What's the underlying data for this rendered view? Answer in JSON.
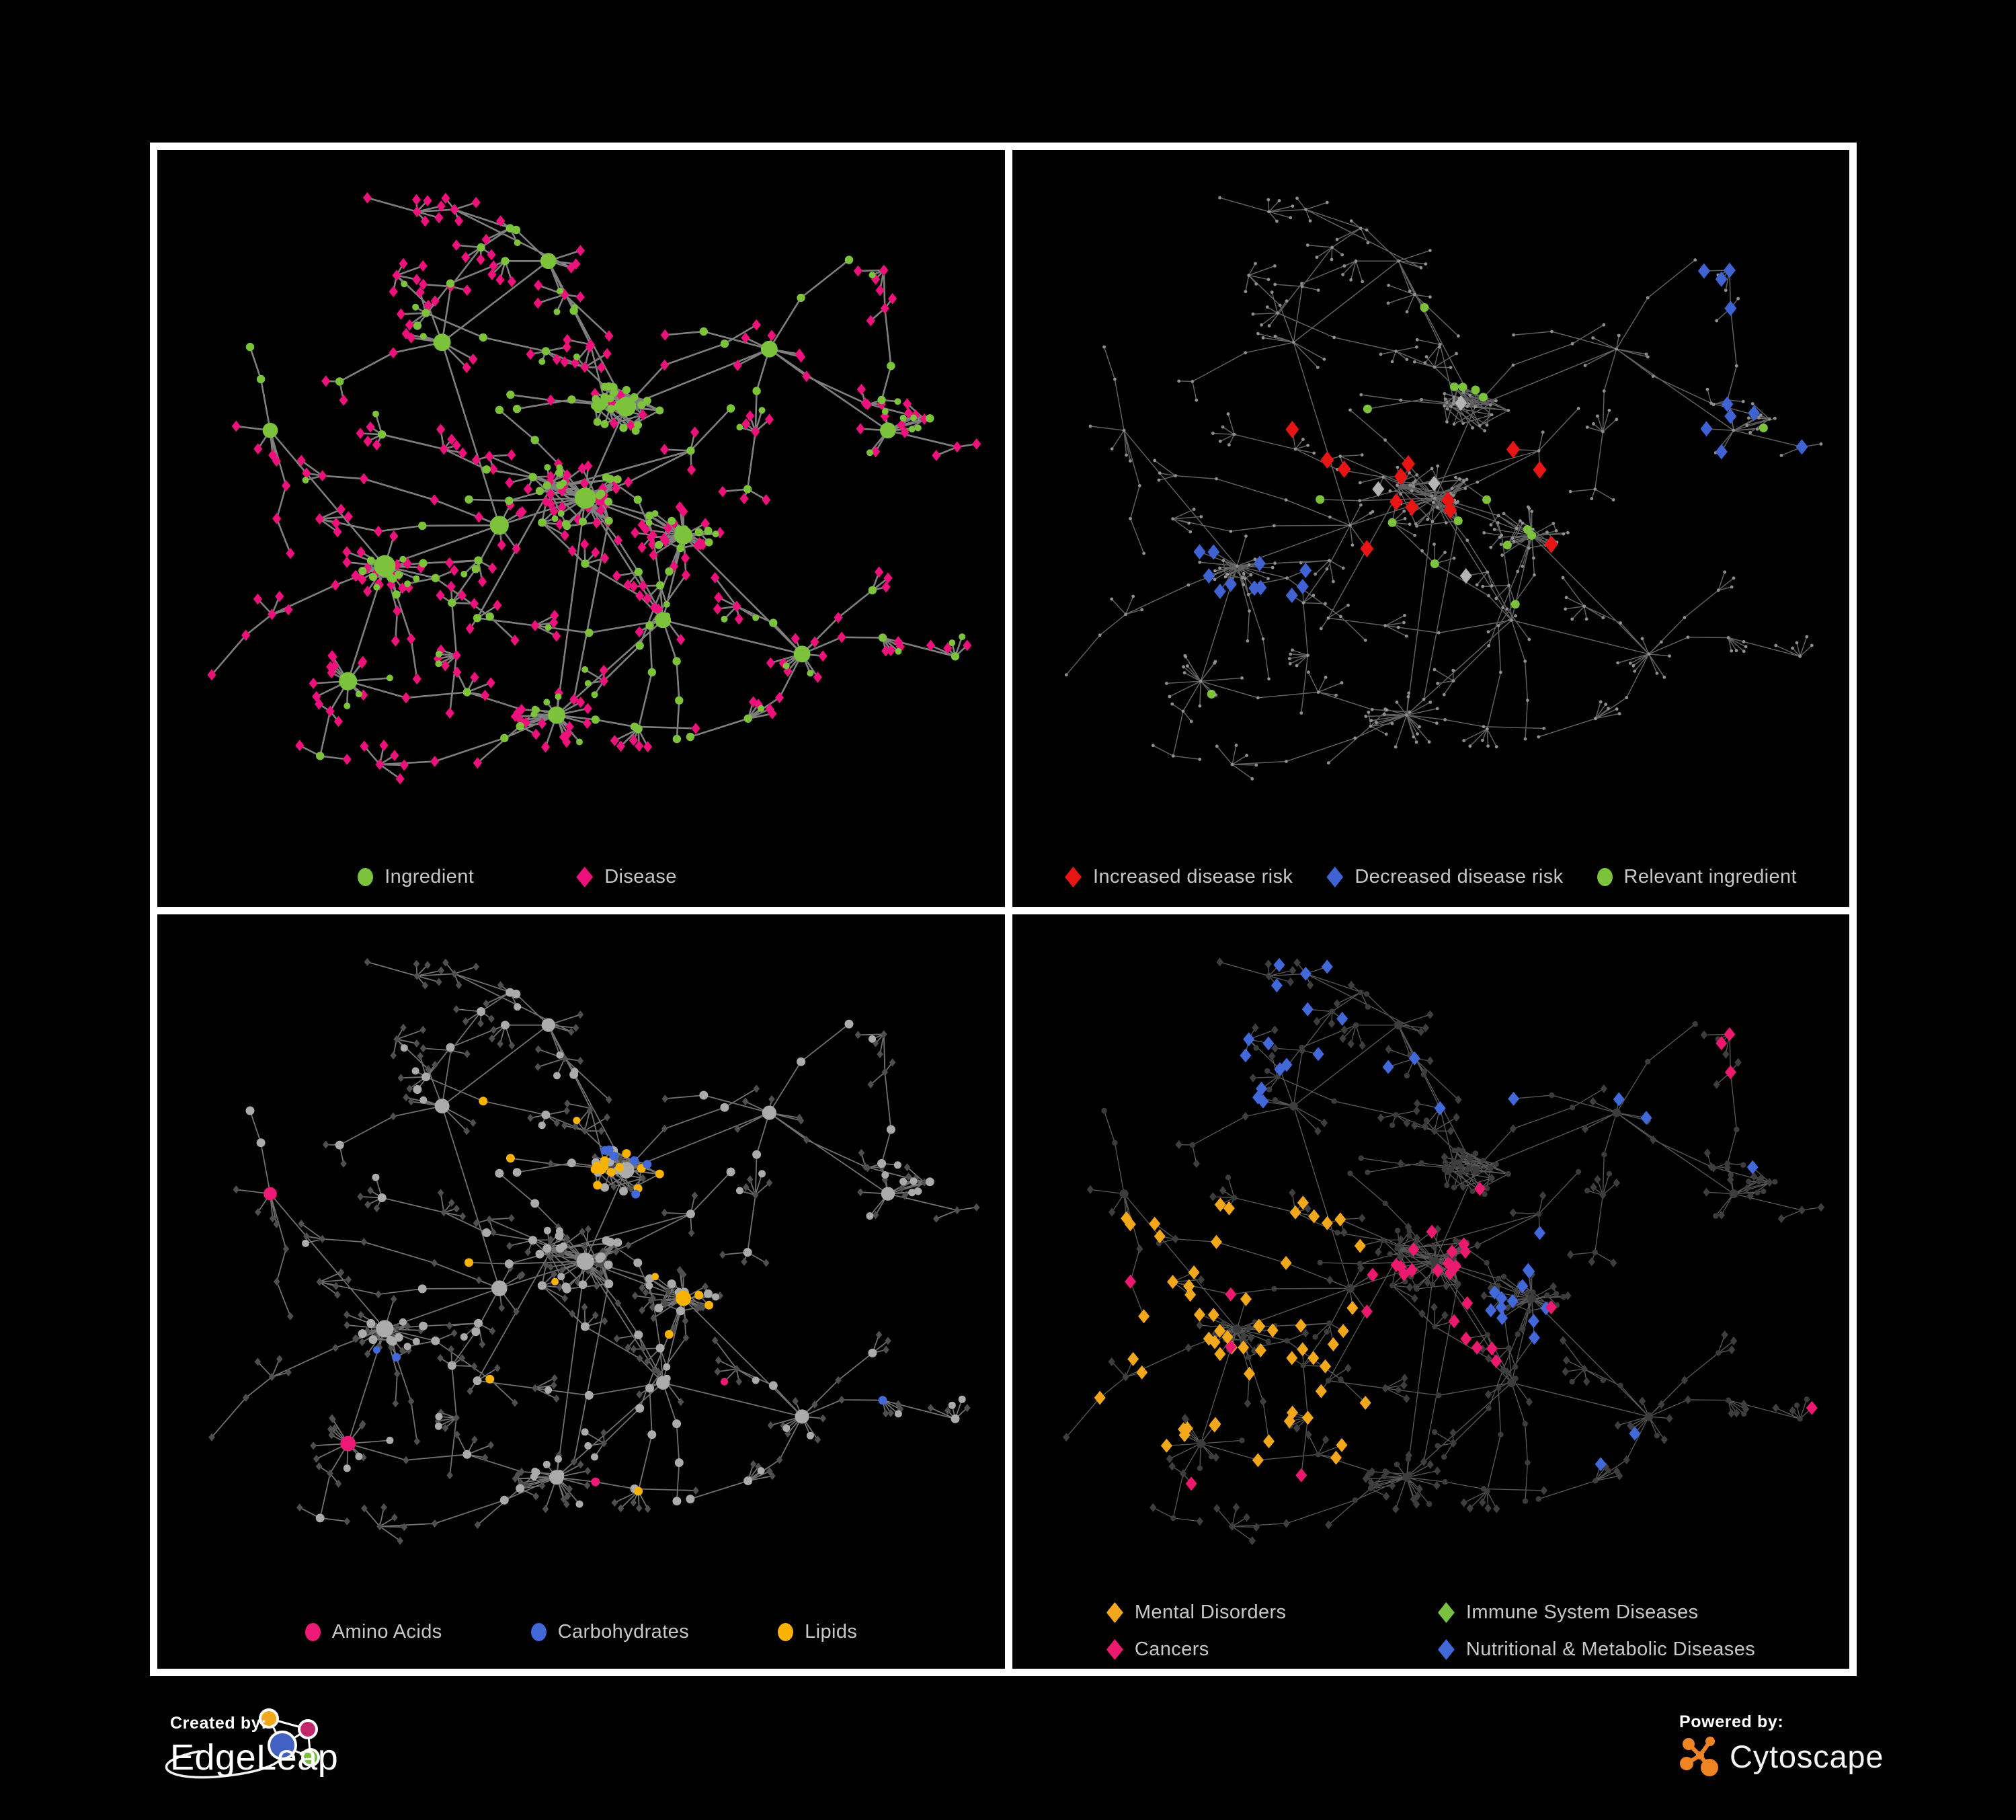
{
  "page": {
    "background": "#000000",
    "frame_border": "#FFFFFF"
  },
  "branding": {
    "created_by_label": "Created by:",
    "created_by_name": "EdgeLeap",
    "powered_by_label": "Powered by:",
    "powered_by_name": "Cytoscape",
    "edgeleap_logo_colors": {
      "orange": "#F2A71B",
      "magenta": "#C4266E",
      "blue": "#4361C2",
      "green": "#77BF43"
    },
    "cytoscape_logo_color": "#EE8522"
  },
  "panels": [
    {
      "id": "ingredient-disease",
      "position": "top-left",
      "legend": [
        {
          "label": "Ingredient",
          "shape": "circle",
          "color": "#7CC33B"
        },
        {
          "label": "Disease",
          "shape": "diamond",
          "color": "#ED127B"
        }
      ]
    },
    {
      "id": "disease-risk",
      "position": "top-right",
      "legend": [
        {
          "label": "Increased disease risk",
          "shape": "diamond",
          "color": "#E81515"
        },
        {
          "label": "Decreased disease risk",
          "shape": "diamond",
          "color": "#3F63D2"
        },
        {
          "label": "Relevant ingredient",
          "shape": "circle",
          "color": "#7CC33B"
        }
      ]
    },
    {
      "id": "nutrient-classes",
      "position": "bottom-left",
      "legend": [
        {
          "label": "Amino Acids",
          "shape": "circle",
          "color": "#ED1A78"
        },
        {
          "label": "Carbohydrates",
          "shape": "circle",
          "color": "#4169D9"
        },
        {
          "label": "Lipids",
          "shape": "circle",
          "color": "#F9B200"
        }
      ]
    },
    {
      "id": "disease-classes",
      "position": "bottom-right",
      "legend_columns": 2,
      "legend": [
        {
          "label": "Mental Disorders",
          "shape": "diamond",
          "color": "#F3A71B"
        },
        {
          "label": "Immune System Diseases",
          "shape": "diamond",
          "color": "#7AC142"
        },
        {
          "label": "Cancers",
          "shape": "diamond",
          "color": "#EC1A6E"
        },
        {
          "label": "Nutritional & Metabolic Diseases",
          "shape": "diamond",
          "color": "#4169D9"
        }
      ]
    }
  ],
  "network": {
    "seed": 42,
    "node_kinds": [
      "ingredient (circle)",
      "disease (diamond)"
    ],
    "hubs": [
      [
        0.26,
        0.6,
        1.6,
        18
      ],
      [
        0.4,
        0.54,
        1.2,
        6
      ],
      [
        0.505,
        0.5,
        1.5,
        10
      ],
      [
        0.555,
        0.365,
        1.3,
        0
      ],
      [
        0.33,
        0.27,
        1.0,
        5
      ],
      [
        0.46,
        0.15,
        0.8,
        4
      ],
      [
        0.625,
        0.555,
        1.1,
        16
      ],
      [
        0.47,
        0.82,
        1.0,
        17
      ],
      [
        0.215,
        0.77,
        1.1,
        13
      ],
      [
        0.73,
        0.28,
        0.9,
        5
      ],
      [
        0.875,
        0.4,
        0.8,
        8
      ],
      [
        0.77,
        0.73,
        0.9,
        9
      ],
      [
        0.12,
        0.4,
        0.7,
        4
      ],
      [
        0.6,
        0.68,
        0.8,
        0
      ]
    ],
    "hubLinks": [
      [
        0,
        1
      ],
      [
        1,
        2
      ],
      [
        2,
        3
      ],
      [
        3,
        5
      ],
      [
        2,
        6
      ],
      [
        6,
        13
      ],
      [
        13,
        7
      ],
      [
        0,
        8
      ],
      [
        0,
        12
      ],
      [
        3,
        9
      ],
      [
        9,
        10
      ],
      [
        6,
        11
      ],
      [
        4,
        1
      ],
      [
        4,
        5
      ],
      [
        2,
        13
      ],
      [
        11,
        13
      ],
      [
        2,
        7
      ]
    ],
    "clusters": [
      {
        "hub": 3,
        "n": 30,
        "r": 0.045,
        "ingP": 0.78
      },
      {
        "hub": 2,
        "n": 20,
        "r": 0.055,
        "ingP": 0.5
      },
      {
        "hub": 6,
        "n": 12,
        "r": 0.035,
        "ingP": 0.55
      },
      {
        "hub": 0,
        "n": 10,
        "r": 0.03,
        "ingP": 0.7
      }
    ],
    "crossLinks": 18,
    "styles": {
      "p1": {
        "edge": "#8D8D8D",
        "edgeW": 2.6,
        "ing": "#7CC33B",
        "dis": "#ED127B"
      },
      "p2": {
        "edge": "#6A6A6A",
        "edgeW": 1.5,
        "base": "#8F8F8F",
        "red": "#E81515",
        "blue": "#3F63D2",
        "silver": "#B3B3B3",
        "green": "#7CC33B"
      },
      "p3": {
        "edge": "#7C7C7C",
        "edgeW": 1.8,
        "ing": "#ABABAB",
        "dis": "#4F4F4F",
        "amino": "#ED1A78",
        "carb": "#4169D9",
        "lipid": "#F9B200"
      },
      "p4": {
        "edge": "#5E5E5E",
        "edgeW": 1.4,
        "ing": "#3C3C3C",
        "dis": "#3E3E3E",
        "mental": "#F3A71B",
        "immune": "#7AC142",
        "cancer": "#EC1A6E",
        "nutri": "#4169D9"
      }
    }
  }
}
